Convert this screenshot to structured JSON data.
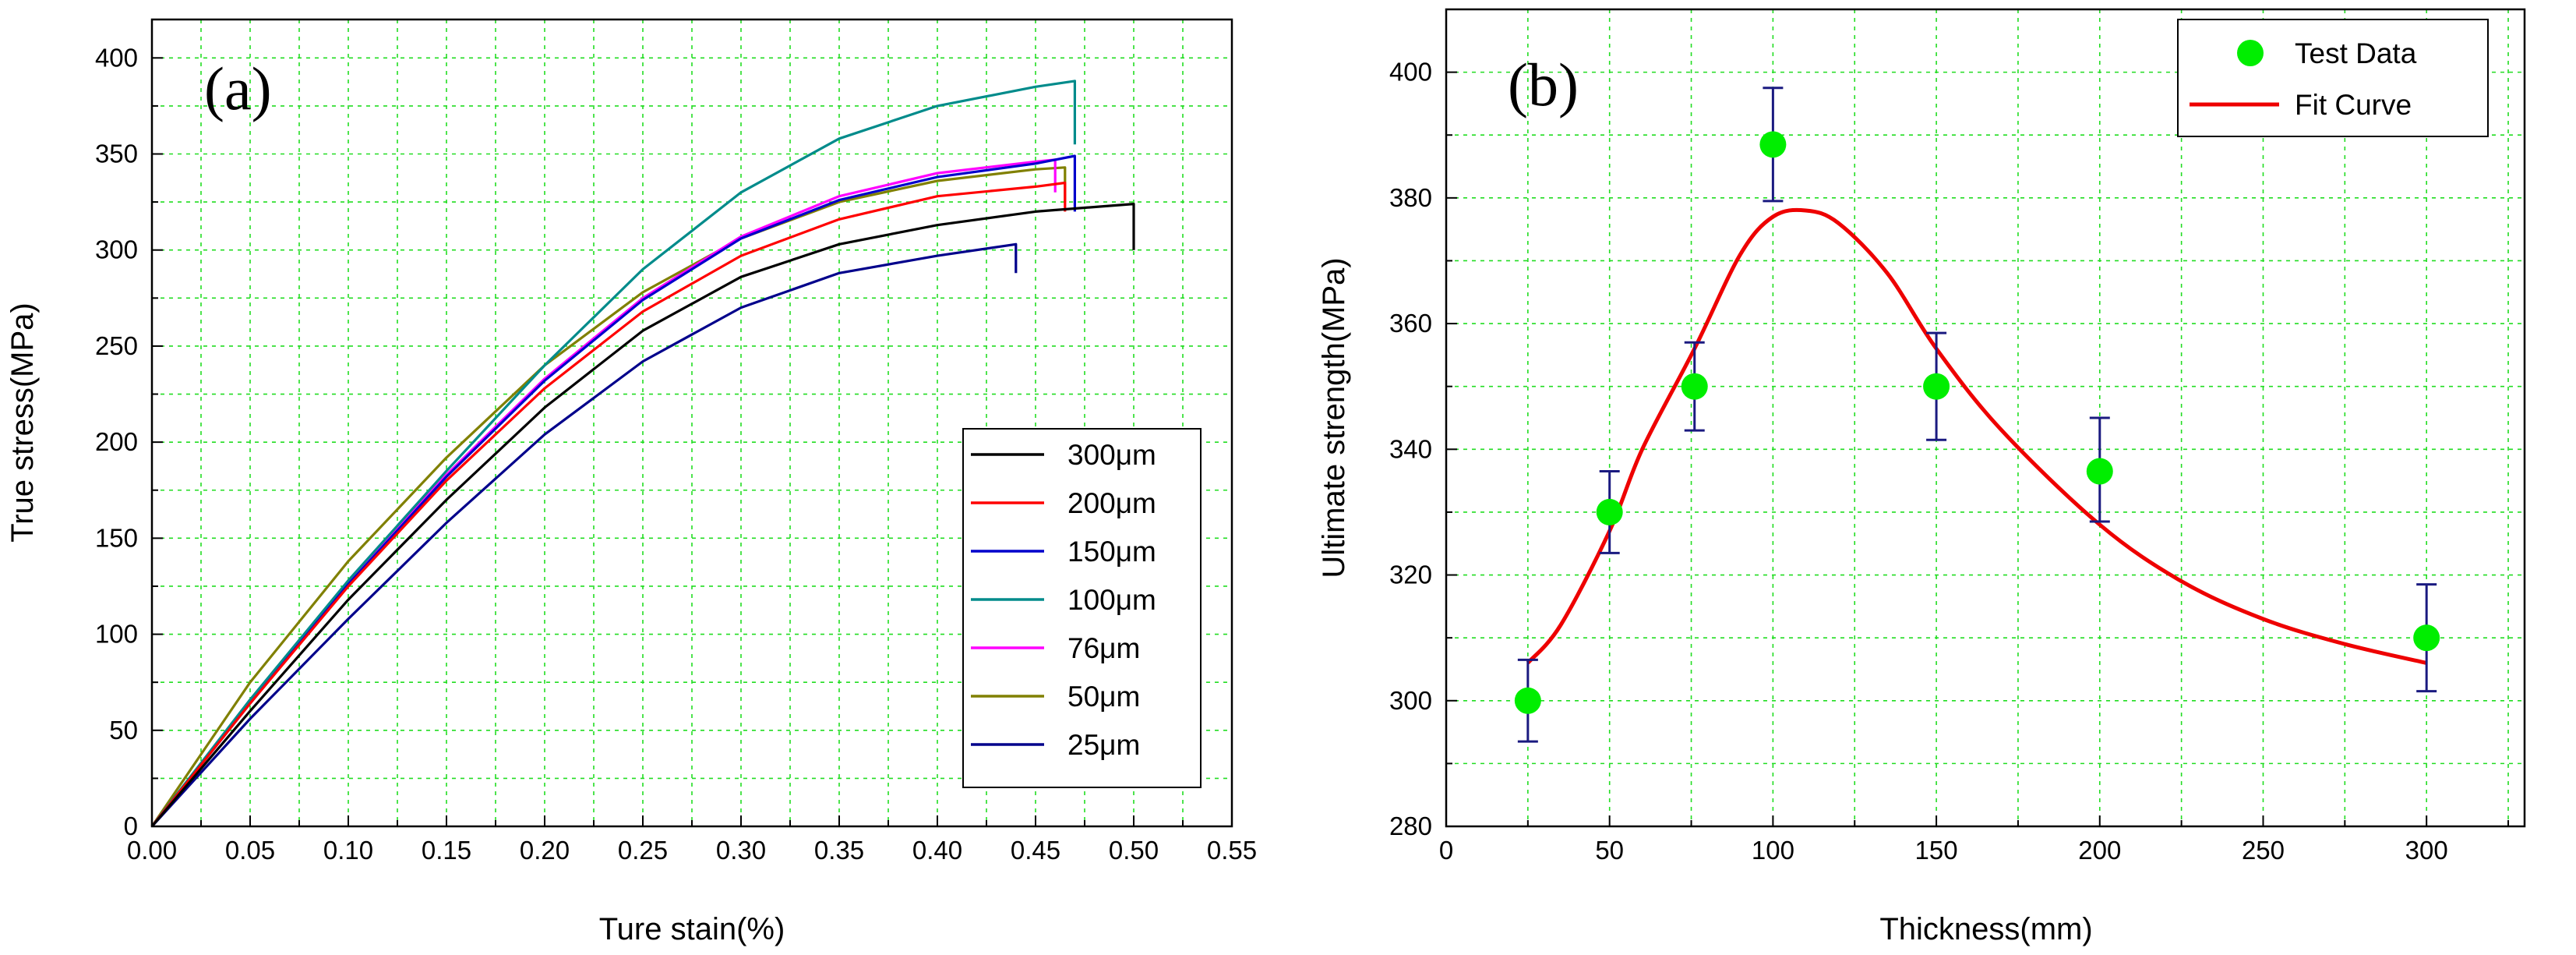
{
  "chart_data": [
    {
      "type": "line",
      "panel_label": "(a)",
      "xlabel": "Ture stain(%)",
      "ylabel": "True stress(MPa)",
      "xlim": [
        0,
        0.55
      ],
      "ylim": [
        0,
        420
      ],
      "xticks": [
        "0.00",
        "0.05",
        "0.10",
        "0.15",
        "0.20",
        "0.25",
        "0.30",
        "0.35",
        "0.40",
        "0.45",
        "0.50",
        "0.55"
      ],
      "yticks": [
        "0",
        "50",
        "100",
        "150",
        "200",
        "250",
        "300",
        "350",
        "400"
      ],
      "grid": true,
      "legend_position": "bottom-right",
      "series": [
        {
          "name": "300μm",
          "color": "#000000",
          "x": [
            0,
            0.05,
            0.1,
            0.15,
            0.2,
            0.25,
            0.3,
            0.35,
            0.4,
            0.45,
            0.5
          ],
          "y": [
            0,
            60,
            118,
            170,
            218,
            258,
            286,
            303,
            313,
            320,
            324
          ],
          "end_drop_to": 300
        },
        {
          "name": "200μm",
          "color": "#ff0000",
          "x": [
            0,
            0.05,
            0.1,
            0.15,
            0.2,
            0.25,
            0.3,
            0.35,
            0.4,
            0.45,
            0.465
          ],
          "y": [
            0,
            64,
            125,
            180,
            228,
            268,
            297,
            316,
            328,
            333,
            335
          ],
          "end_drop_to": 320
        },
        {
          "name": "150μm",
          "color": "#0000cc",
          "x": [
            0,
            0.05,
            0.1,
            0.15,
            0.2,
            0.25,
            0.3,
            0.35,
            0.4,
            0.45,
            0.47
          ],
          "y": [
            0,
            64,
            126,
            182,
            232,
            274,
            306,
            326,
            338,
            345,
            349
          ],
          "end_drop_to": 320
        },
        {
          "name": "100μm",
          "color": "#008b8b",
          "x": [
            0,
            0.05,
            0.1,
            0.15,
            0.2,
            0.25,
            0.3,
            0.35,
            0.4,
            0.45,
            0.47
          ],
          "y": [
            0,
            66,
            128,
            185,
            240,
            290,
            330,
            358,
            375,
            385,
            388
          ],
          "end_drop_to": 355
        },
        {
          "name": "76μm",
          "color": "#ff00ff",
          "x": [
            0,
            0.05,
            0.1,
            0.15,
            0.2,
            0.25,
            0.3,
            0.35,
            0.4,
            0.45,
            0.46
          ],
          "y": [
            0,
            65,
            127,
            183,
            233,
            275,
            307,
            328,
            340,
            346,
            347
          ],
          "end_drop_to": 330
        },
        {
          "name": "50μm",
          "color": "#808000",
          "x": [
            0,
            0.05,
            0.1,
            0.15,
            0.2,
            0.25,
            0.3,
            0.35,
            0.4,
            0.45,
            0.465
          ],
          "y": [
            0,
            75,
            138,
            192,
            240,
            278,
            306,
            325,
            336,
            342,
            343
          ],
          "end_drop_to": 325
        },
        {
          "name": "25μm",
          "color": "#00008b",
          "x": [
            0,
            0.05,
            0.1,
            0.15,
            0.2,
            0.25,
            0.3,
            0.35,
            0.4,
            0.44
          ],
          "y": [
            0,
            56,
            108,
            158,
            204,
            242,
            270,
            288,
            297,
            303
          ],
          "end_drop_to": 288
        }
      ]
    },
    {
      "type": "scatter",
      "panel_label": "(b)",
      "xlabel": "Thickness(mm)",
      "ylabel": "Ultimate strength(MPa)",
      "xlim": [
        0,
        330
      ],
      "ylim": [
        280,
        410
      ],
      "xticks": [
        "0",
        "50",
        "100",
        "150",
        "200",
        "250",
        "300"
      ],
      "yticks": [
        "280",
        "300",
        "320",
        "340",
        "360",
        "380",
        "400"
      ],
      "grid": true,
      "legend_position": "top-right",
      "points": {
        "name": "Test Data",
        "color": "#00ee00",
        "x": [
          25,
          50,
          76,
          100,
          150,
          200,
          300
        ],
        "y": [
          300,
          330,
          350,
          388.5,
          350,
          336.5,
          310
        ],
        "err_low": [
          293.5,
          323.5,
          343,
          379.5,
          341.5,
          328.5,
          301.5
        ],
        "err_high": [
          306.5,
          336.5,
          357,
          397.5,
          358.5,
          345,
          318.5
        ]
      },
      "fit": {
        "name": "Fit Curve",
        "color": "#ee0000",
        "x": [
          25,
          35,
          50,
          60,
          76,
          90,
          100,
          110,
          120,
          135,
          150,
          170,
          200,
          225,
          250,
          275,
          300
        ],
        "y": [
          306,
          312,
          327,
          340,
          356,
          371,
          377,
          378,
          376,
          368,
          356,
          343,
          328,
          319,
          313,
          309,
          306
        ]
      }
    }
  ]
}
